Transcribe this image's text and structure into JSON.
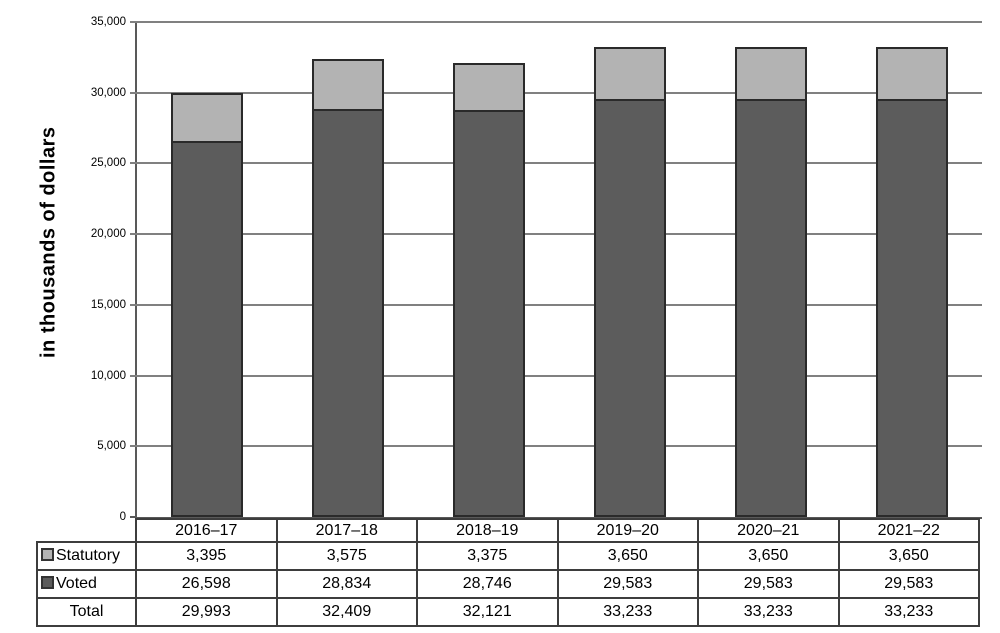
{
  "chart_data": {
    "type": "bar",
    "stacked": true,
    "title": "",
    "xlabel": "",
    "ylabel": "in thousands of dollars",
    "ylim": [
      0,
      35000
    ],
    "ytick_step": 5000,
    "y_tick_labels": [
      "0",
      "5,000",
      "10,000",
      "15,000",
      "20,000",
      "25,000",
      "30,000",
      "35,000"
    ],
    "grid": true,
    "legend_position": "table-rows-left",
    "categories": [
      "2016–17",
      "2017–18",
      "2018–19",
      "2019–20",
      "2020–21",
      "2021–22"
    ],
    "series": [
      {
        "name": "Statutory",
        "values": [
          3395,
          3575,
          3375,
          3650,
          3650,
          3650
        ],
        "color": "#b3b3b3"
      },
      {
        "name": "Voted",
        "values": [
          26598,
          28834,
          28746,
          29583,
          29583,
          29583
        ],
        "color": "#5c5c5c"
      }
    ],
    "total_row": {
      "name": "Total",
      "values": [
        29993,
        32409,
        32121,
        33233,
        33233,
        33233
      ]
    },
    "table_display": {
      "Statutory": [
        "3,395",
        "3,575",
        "3,375",
        "3,650",
        "3,650",
        "3,650"
      ],
      "Voted": [
        "26,598",
        "28,834",
        "28,746",
        "29,583",
        "29,583",
        "29,583"
      ],
      "Total": [
        "29,993",
        "32,409",
        "32,121",
        "33,233",
        "33,233",
        "33,233"
      ]
    }
  },
  "colors": {
    "statutory_fill": "#b3b3b3",
    "voted_fill": "#5c5c5c",
    "bar_border": "#2a2a2a",
    "gridline": "#808080",
    "axis": "#595959",
    "table_border": "#3d3d3d",
    "text": "#000000"
  }
}
